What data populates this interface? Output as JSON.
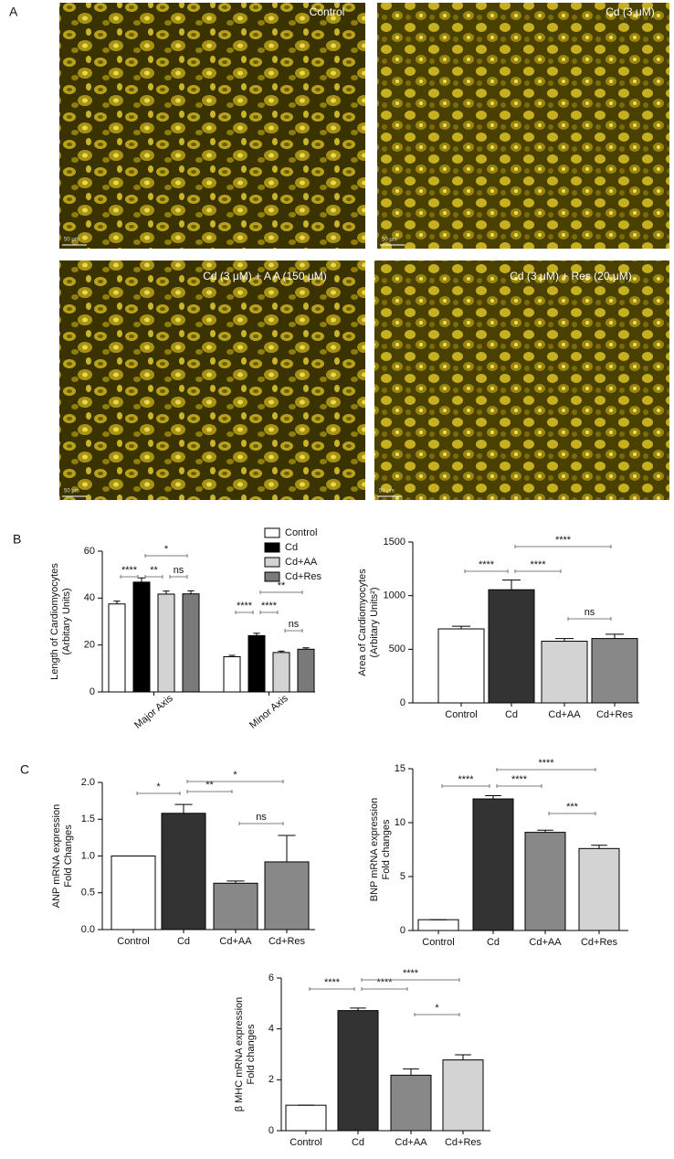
{
  "panel_labels": [
    "A",
    "B",
    "C"
  ],
  "images": [
    {
      "label": "Control",
      "scale": "50 μm"
    },
    {
      "label": "Cd (3 μM)",
      "scale": "50 μm"
    },
    {
      "label": "Cd (3 μM) + A A (150 μM)",
      "scale": "50 μm"
    },
    {
      "label": "Cd (3 μM) + Res (20 μM)",
      "scale": "50 μm"
    }
  ],
  "chart_data": [
    {
      "type": "bar",
      "ylabel": [
        "Length of Cardiomyocytes",
        "(Arbitary Units)"
      ],
      "categories": [
        "Major Axis",
        "Minor Axis"
      ],
      "series": [
        {
          "name": "Control",
          "color": "#ffffff",
          "values": [
            37.5,
            15
          ],
          "errors": [
            1.2,
            0.6
          ]
        },
        {
          "name": "Cd",
          "color": "#000000",
          "values": [
            46.8,
            24
          ],
          "errors": [
            1.8,
            1
          ]
        },
        {
          "name": "Cd+AA",
          "color": "#d3d3d3",
          "values": [
            41.7,
            16.8
          ],
          "errors": [
            1.3,
            0.6
          ]
        },
        {
          "name": "Cd+Res",
          "color": "#7a7a7a",
          "values": [
            41.8,
            18.2
          ],
          "errors": [
            1.3,
            0.6
          ]
        }
      ],
      "ylim": [
        0,
        60
      ],
      "yticks": [
        0,
        20,
        40,
        60
      ],
      "annotations": [
        "****",
        "**",
        "*",
        "ns",
        "****",
        "****",
        "**",
        "ns"
      ]
    },
    {
      "type": "bar",
      "ylabel": [
        "Area of Cardiomyocytes",
        "(Arbitary Units²)"
      ],
      "categories": [
        "Control",
        "Cd",
        "Cd+AA",
        "Cd+Res"
      ],
      "values": [
        690,
        1055,
        575,
        600
      ],
      "errors": [
        25,
        90,
        25,
        40
      ],
      "colors": [
        "#ffffff",
        "#333333",
        "#d3d3d3",
        "#888888"
      ],
      "ylim": [
        0,
        1500
      ],
      "yticks": [
        0,
        500,
        1000,
        1500
      ],
      "annotations": [
        "****",
        "****",
        "****",
        "ns"
      ]
    },
    {
      "type": "bar",
      "ylabel": [
        "ANP mRNA expression",
        "Fold Changes"
      ],
      "categories": [
        "Control",
        "Cd",
        "Cd+AA",
        "Cd+Res"
      ],
      "values": [
        1.0,
        1.58,
        0.63,
        0.92
      ],
      "errors": [
        0,
        0.12,
        0.03,
        0.36
      ],
      "colors": [
        "#ffffff",
        "#333333",
        "#888888",
        "#888888"
      ],
      "ylim": [
        0,
        2
      ],
      "yticks": [
        {
          "value": 0,
          "label": "0.0"
        },
        {
          "value": 0.5,
          "label": "0.5"
        },
        {
          "value": 1,
          "label": "1.0"
        },
        {
          "value": 1.5,
          "label": "1.5"
        },
        {
          "value": 2,
          "label": "2.0"
        }
      ],
      "annotations": [
        "*",
        "**",
        "*",
        "ns"
      ]
    },
    {
      "type": "bar",
      "ylabel": [
        "BNP mRNA expression",
        "Fold changes"
      ],
      "categories": [
        "Control",
        "Cd",
        "Cd+AA",
        "Cd+Res"
      ],
      "values": [
        1,
        12.2,
        9.1,
        7.6
      ],
      "errors": [
        0,
        0.3,
        0.2,
        0.3
      ],
      "colors": [
        "#ffffff",
        "#333333",
        "#888888",
        "#d3d3d3"
      ],
      "ylim": [
        0,
        15
      ],
      "yticks": [
        0,
        5,
        10,
        15
      ],
      "annotations": [
        "****",
        "****",
        "****",
        "***"
      ]
    },
    {
      "type": "bar",
      "ylabel": [
        "β MHC mRNA expression",
        "Fold changes"
      ],
      "categories": [
        "Control",
        "Cd",
        "Cd+AA",
        "Cd+Res"
      ],
      "values": [
        1,
        4.72,
        2.18,
        2.78
      ],
      "errors": [
        0,
        0.1,
        0.25,
        0.2
      ],
      "colors": [
        "#ffffff",
        "#333333",
        "#888888",
        "#d3d3d3"
      ],
      "ylim": [
        0,
        6
      ],
      "yticks": [
        0,
        2,
        4,
        6
      ],
      "annotations": [
        "****",
        "****",
        "****",
        "*"
      ]
    }
  ]
}
